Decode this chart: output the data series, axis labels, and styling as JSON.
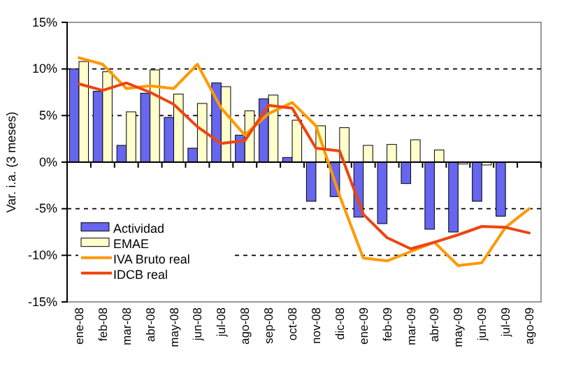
{
  "chart_data": {
    "type": "bar",
    "ylabel": "Var. i.a. (3 meses)",
    "categories": [
      "ene-08",
      "feb-08",
      "mar-08",
      "abr-08",
      "may-08",
      "jun-08",
      "jul-08",
      "ago-08",
      "sep-08",
      "oct-08",
      "nov-08",
      "dic-08",
      "ene-09",
      "feb-09",
      "mar-09",
      "abr-09",
      "may-09",
      "jun-09",
      "jul-09",
      "ago-09"
    ],
    "series": [
      {
        "name": "Actividad",
        "color": "#6666ee",
        "values": [
          10,
          7.6,
          1.8,
          7.4,
          4.8,
          1.5,
          8.5,
          2.9,
          6.8,
          0.5,
          -4.2,
          -3.7,
          -5.9,
          -6.6,
          -2.3,
          -7.2,
          -7.5,
          -4.2,
          -5.8,
          null
        ]
      },
      {
        "name": "EMAE",
        "color": "#ffffcc",
        "values": [
          10.8,
          9.7,
          5.4,
          9.9,
          7.3,
          6.3,
          8.1,
          5.5,
          7.2,
          4.5,
          3.9,
          3.7,
          1.8,
          1.9,
          2.4,
          1.3,
          -0.2,
          -0.3,
          null,
          null
        ]
      },
      {
        "name": "IVA Bruto real",
        "type": "line",
        "color": "#ff9900",
        "values": [
          11.2,
          10.5,
          7.9,
          8.2,
          7.9,
          10.5,
          5.8,
          2.9,
          5.2,
          6.4,
          3.9,
          -3.6,
          -10.3,
          -10.6,
          -9.6,
          -8.6,
          -11.1,
          -10.8,
          -7,
          -5
        ]
      },
      {
        "name": "IDCB real",
        "type": "line",
        "color": "#ee4411",
        "values": [
          8.4,
          7.7,
          8.5,
          7.5,
          6.2,
          3.8,
          2,
          2.3,
          6.1,
          5.8,
          1.5,
          1.2,
          -5.6,
          -8.1,
          -9.3,
          -8.6,
          -7.8,
          -6.9,
          -7,
          -7.6
        ]
      }
    ],
    "ylim": [
      -15,
      15
    ],
    "yticks": [
      {
        "value": -15,
        "label": "-15%"
      },
      {
        "value": -10,
        "label": "-10%"
      },
      {
        "value": -5,
        "label": "-5%"
      },
      {
        "value": 0,
        "label": "0%"
      },
      {
        "value": 5,
        "label": "5%"
      },
      {
        "value": 10,
        "label": "10%"
      },
      {
        "value": 15,
        "label": "15%"
      }
    ],
    "grid": "y",
    "legend": "bottom left"
  }
}
